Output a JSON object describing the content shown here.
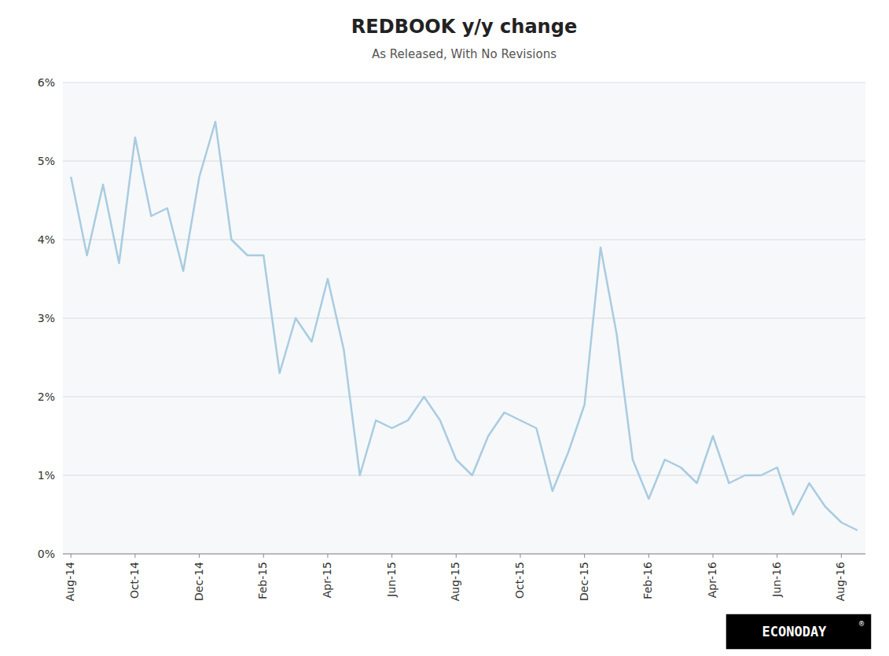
{
  "chart_data": {
    "type": "line",
    "title": "REDBOOK y/y change",
    "subtitle": "As Released, With No Revisions",
    "color": "#a8cce0",
    "categories": [
      "Aug-14",
      null,
      null,
      null,
      "Oct-14",
      null,
      null,
      null,
      "Dec-14",
      null,
      null,
      null,
      "Feb-15",
      null,
      null,
      null,
      "Apr-15",
      null,
      null,
      null,
      "Jun-15",
      null,
      null,
      null,
      "Aug-15",
      null,
      null,
      null,
      "Oct-15",
      null,
      null,
      null,
      "Dec-15",
      null,
      null,
      null,
      "Feb-16",
      null,
      null,
      null,
      "Apr-16",
      null,
      null,
      null,
      "Jun-16",
      null,
      null,
      null,
      "Aug-16",
      null
    ],
    "values": [
      4.8,
      3.8,
      4.7,
      3.7,
      5.3,
      4.3,
      4.4,
      3.6,
      4.8,
      5.5,
      4.0,
      3.8,
      3.8,
      2.3,
      3.0,
      2.7,
      3.5,
      2.6,
      1.0,
      1.7,
      1.6,
      1.7,
      2.0,
      1.7,
      1.2,
      1.0,
      1.5,
      1.8,
      1.7,
      1.6,
      0.8,
      1.3,
      1.9,
      3.9,
      2.8,
      1.2,
      0.7,
      1.2,
      1.1,
      0.9,
      1.5,
      0.9,
      1.0,
      1.0,
      1.1,
      0.5,
      0.9,
      0.6,
      0.4,
      0.3
    ],
    "ylim": [
      0,
      6
    ],
    "yticks": [
      {
        "value": 0,
        "label": "0%"
      },
      {
        "value": 1,
        "label": "1%"
      },
      {
        "value": 2,
        "label": "2%"
      },
      {
        "value": 3,
        "label": "3%"
      },
      {
        "value": 4,
        "label": "4%"
      },
      {
        "value": 5,
        "label": "5%"
      },
      {
        "value": 6,
        "label": "6%"
      }
    ],
    "grid": true,
    "annotations": [
      "ECONODAY",
      "®"
    ]
  }
}
